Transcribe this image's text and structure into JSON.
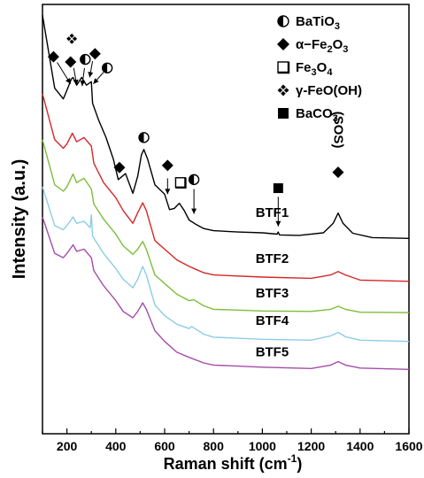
{
  "chart_data": {
    "type": "line",
    "xlabel": "Raman shift (cm",
    "xlabel_sup": "-1",
    "xlabel_close": ")",
    "ylabel": "Intensity (a.u.)",
    "xlim": [
      100,
      1600
    ],
    "xticks": [
      200,
      400,
      600,
      800,
      1000,
      1200,
      1400,
      1600
    ],
    "y_ticks_labeled": false,
    "grid": false,
    "legend_position": "top-right",
    "legend": [
      {
        "marker": "half-circle",
        "parts": [
          {
            "t": "BaTiO"
          },
          {
            "t": "3",
            "sub": true
          }
        ]
      },
      {
        "marker": "filled-diamond",
        "parts": [
          {
            "t": "α−Fe"
          },
          {
            "t": "2",
            "sub": true
          },
          {
            "t": "O"
          },
          {
            "t": "3",
            "sub": true
          }
        ]
      },
      {
        "marker": "open-square",
        "parts": [
          {
            "t": "Fe"
          },
          {
            "t": "3",
            "sub": true
          },
          {
            "t": "O"
          },
          {
            "t": "4",
            "sub": true
          }
        ]
      },
      {
        "marker": "clover",
        "parts": [
          {
            "t": "γ-FeO(OH)"
          }
        ]
      },
      {
        "marker": "filled-square",
        "parts": [
          {
            "t": "BaCO"
          },
          {
            "t": "3",
            "sub": true
          }
        ]
      }
    ],
    "series": [
      {
        "name": "BTF1",
        "color": "#000000",
        "points": [
          [
            100,
            0.975
          ],
          [
            150,
            0.805
          ],
          [
            185,
            0.78
          ],
          [
            200,
            0.8
          ],
          [
            218,
            0.826
          ],
          [
            225,
            0.83
          ],
          [
            240,
            0.812
          ],
          [
            260,
            0.83
          ],
          [
            280,
            0.812
          ],
          [
            300,
            0.82
          ],
          [
            305,
            0.77
          ],
          [
            330,
            0.73
          ],
          [
            360,
            0.69
          ],
          [
            390,
            0.64
          ],
          [
            410,
            0.592
          ],
          [
            440,
            0.606
          ],
          [
            470,
            0.56
          ],
          [
            490,
            0.6
          ],
          [
            505,
            0.65
          ],
          [
            515,
            0.662
          ],
          [
            530,
            0.64
          ],
          [
            560,
            0.58
          ],
          [
            600,
            0.558
          ],
          [
            620,
            0.522
          ],
          [
            640,
            0.525
          ],
          [
            660,
            0.537
          ],
          [
            680,
            0.52
          ],
          [
            700,
            0.498
          ],
          [
            730,
            0.487
          ],
          [
            760,
            0.478
          ],
          [
            800,
            0.473
          ],
          [
            900,
            0.47
          ],
          [
            1000,
            0.468
          ],
          [
            1060,
            0.465
          ],
          [
            1065,
            0.47
          ],
          [
            1070,
            0.463
          ],
          [
            1150,
            0.462
          ],
          [
            1250,
            0.468
          ],
          [
            1290,
            0.49
          ],
          [
            1310,
            0.514
          ],
          [
            1330,
            0.49
          ],
          [
            1370,
            0.467
          ],
          [
            1450,
            0.457
          ],
          [
            1600,
            0.455
          ]
        ]
      },
      {
        "name": "BTF2",
        "color": "#d62728",
        "points": [
          [
            100,
            0.792
          ],
          [
            150,
            0.685
          ],
          [
            185,
            0.665
          ],
          [
            200,
            0.675
          ],
          [
            222,
            0.7
          ],
          [
            240,
            0.68
          ],
          [
            270,
            0.69
          ],
          [
            300,
            0.67
          ],
          [
            310,
            0.63
          ],
          [
            350,
            0.585
          ],
          [
            400,
            0.55
          ],
          [
            430,
            0.52
          ],
          [
            470,
            0.49
          ],
          [
            490,
            0.515
          ],
          [
            510,
            0.538
          ],
          [
            525,
            0.52
          ],
          [
            560,
            0.45
          ],
          [
            600,
            0.43
          ],
          [
            650,
            0.405
          ],
          [
            700,
            0.39
          ],
          [
            720,
            0.385
          ],
          [
            760,
            0.375
          ],
          [
            800,
            0.37
          ],
          [
            1000,
            0.365
          ],
          [
            1200,
            0.362
          ],
          [
            1280,
            0.37
          ],
          [
            1310,
            0.378
          ],
          [
            1340,
            0.37
          ],
          [
            1400,
            0.358
          ],
          [
            1600,
            0.355
          ]
        ]
      },
      {
        "name": "BTF3",
        "color": "#7cbe3a",
        "points": [
          [
            100,
            0.685
          ],
          [
            150,
            0.58
          ],
          [
            185,
            0.565
          ],
          [
            200,
            0.575
          ],
          [
            225,
            0.605
          ],
          [
            240,
            0.585
          ],
          [
            270,
            0.595
          ],
          [
            300,
            0.57
          ],
          [
            310,
            0.535
          ],
          [
            350,
            0.5
          ],
          [
            400,
            0.465
          ],
          [
            430,
            0.438
          ],
          [
            470,
            0.418
          ],
          [
            490,
            0.43
          ],
          [
            510,
            0.448
          ],
          [
            525,
            0.43
          ],
          [
            560,
            0.37
          ],
          [
            600,
            0.35
          ],
          [
            650,
            0.325
          ],
          [
            700,
            0.31
          ],
          [
            720,
            0.312
          ],
          [
            760,
            0.298
          ],
          [
            800,
            0.29
          ],
          [
            1000,
            0.286
          ],
          [
            1200,
            0.285
          ],
          [
            1280,
            0.29
          ],
          [
            1310,
            0.297
          ],
          [
            1340,
            0.29
          ],
          [
            1400,
            0.283
          ],
          [
            1600,
            0.282
          ]
        ]
      },
      {
        "name": "BTF4",
        "color": "#8ccde6",
        "points": [
          [
            100,
            0.575
          ],
          [
            150,
            0.485
          ],
          [
            185,
            0.475
          ],
          [
            200,
            0.485
          ],
          [
            225,
            0.505
          ],
          [
            240,
            0.49
          ],
          [
            270,
            0.495
          ],
          [
            295,
            0.48
          ],
          [
            300,
            0.51
          ],
          [
            305,
            0.46
          ],
          [
            350,
            0.42
          ],
          [
            400,
            0.385
          ],
          [
            430,
            0.36
          ],
          [
            470,
            0.34
          ],
          [
            490,
            0.36
          ],
          [
            510,
            0.39
          ],
          [
            525,
            0.37
          ],
          [
            560,
            0.3
          ],
          [
            600,
            0.275
          ],
          [
            650,
            0.255
          ],
          [
            700,
            0.245
          ],
          [
            710,
            0.25
          ],
          [
            760,
            0.232
          ],
          [
            800,
            0.225
          ],
          [
            1000,
            0.22
          ],
          [
            1200,
            0.218
          ],
          [
            1280,
            0.228
          ],
          [
            1310,
            0.236
          ],
          [
            1340,
            0.226
          ],
          [
            1400,
            0.218
          ],
          [
            1600,
            0.215
          ]
        ]
      },
      {
        "name": "BTF5",
        "color": "#a44ca8",
        "points": [
          [
            100,
            0.505
          ],
          [
            150,
            0.42
          ],
          [
            185,
            0.41
          ],
          [
            200,
            0.42
          ],
          [
            225,
            0.44
          ],
          [
            240,
            0.425
          ],
          [
            270,
            0.43
          ],
          [
            300,
            0.41
          ],
          [
            310,
            0.38
          ],
          [
            350,
            0.345
          ],
          [
            400,
            0.31
          ],
          [
            430,
            0.285
          ],
          [
            470,
            0.27
          ],
          [
            490,
            0.285
          ],
          [
            510,
            0.305
          ],
          [
            525,
            0.29
          ],
          [
            560,
            0.24
          ],
          [
            600,
            0.215
          ],
          [
            650,
            0.19
          ],
          [
            700,
            0.178
          ],
          [
            760,
            0.165
          ],
          [
            800,
            0.16
          ],
          [
            1000,
            0.155
          ],
          [
            1200,
            0.152
          ],
          [
            1280,
            0.16
          ],
          [
            1310,
            0.168
          ],
          [
            1340,
            0.16
          ],
          [
            1400,
            0.153
          ],
          [
            1600,
            0.15
          ]
        ]
      }
    ],
    "series_labels": [
      {
        "text": "BTF1",
        "x": 1040,
        "y": 0.505
      },
      {
        "text": "BTF2",
        "x": 1040,
        "y": 0.398
      },
      {
        "text": "BTF3",
        "x": 1040,
        "y": 0.318
      },
      {
        "text": "BTF4",
        "x": 1040,
        "y": 0.254
      },
      {
        "text": "BTF5",
        "x": 1040,
        "y": 0.18
      }
    ],
    "peak_markers": [
      {
        "marker": "filled-diamond",
        "x": 145,
        "y": 0.878
      },
      {
        "marker": "filled-diamond",
        "x": 215,
        "y": 0.866
      },
      {
        "marker": "clover",
        "x": 220,
        "y": 0.92
      },
      {
        "marker": "half-circle",
        "x": 275,
        "y": 0.872
      },
      {
        "marker": "filled-diamond",
        "x": 315,
        "y": 0.885
      },
      {
        "marker": "half-circle",
        "x": 365,
        "y": 0.852
      },
      {
        "marker": "filled-diamond",
        "x": 415,
        "y": 0.62
      },
      {
        "marker": "half-circle",
        "x": 515,
        "y": 0.69
      },
      {
        "marker": "filled-diamond",
        "x": 612,
        "y": 0.625
      },
      {
        "marker": "open-square",
        "x": 665,
        "y": 0.585
      },
      {
        "marker": "half-circle",
        "x": 720,
        "y": 0.592
      },
      {
        "marker": "filled-square",
        "x": 1065,
        "y": 0.572
      },
      {
        "marker": "filled-diamond",
        "x": 1310,
        "y": 0.609
      }
    ],
    "peak_arrows": [
      {
        "x1": 160,
        "y1": 0.865,
        "x2": 215,
        "y2": 0.815
      },
      {
        "x1": 228,
        "y1": 0.852,
        "x2": 240,
        "y2": 0.812
      },
      {
        "x1": 272,
        "y1": 0.852,
        "x2": 262,
        "y2": 0.81
      },
      {
        "x1": 305,
        "y1": 0.868,
        "x2": 293,
        "y2": 0.83
      },
      {
        "x1": 350,
        "y1": 0.842,
        "x2": 308,
        "y2": 0.815
      },
      {
        "x1": 612,
        "y1": 0.595,
        "x2": 612,
        "y2": 0.558
      },
      {
        "x1": 720,
        "y1": 0.57,
        "x2": 720,
        "y2": 0.512
      },
      {
        "x1": 1065,
        "y1": 0.552,
        "x2": 1065,
        "y2": 0.483
      }
    ],
    "annotation": {
      "text": "(SOS)",
      "x": 1310,
      "y": 0.708
    }
  }
}
